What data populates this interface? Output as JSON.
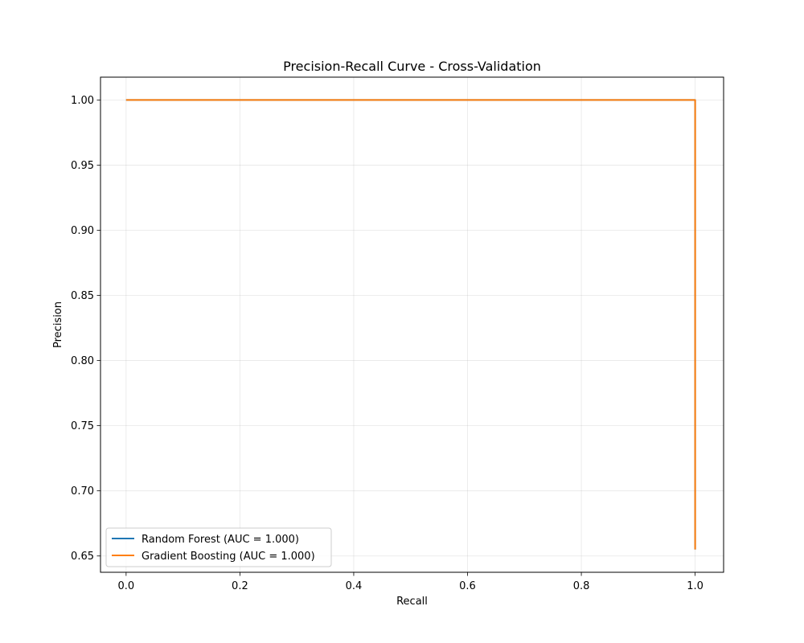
{
  "chart_data": {
    "type": "line",
    "title": "Precision-Recall Curve - Cross-Validation",
    "xlabel": "Recall",
    "ylabel": "Precision",
    "xlim": [
      -0.045,
      1.05
    ],
    "ylim": [
      0.6375,
      1.0175
    ],
    "xticks": [
      0.0,
      0.2,
      0.4,
      0.6,
      0.8,
      1.0
    ],
    "xtick_labels": [
      "0.0",
      "0.2",
      "0.4",
      "0.6",
      "0.8",
      "1.0"
    ],
    "yticks": [
      0.65,
      0.7,
      0.75,
      0.8,
      0.85,
      0.9,
      0.95,
      1.0
    ],
    "ytick_labels": [
      "0.65",
      "0.70",
      "0.75",
      "0.80",
      "0.85",
      "0.90",
      "0.95",
      "1.00"
    ],
    "grid": true,
    "legend_position": "lower-left",
    "series": [
      {
        "name": "Random Forest (AUC = 1.000)",
        "color": "#1f77b4",
        "x": [
          0.0,
          1.0,
          1.0
        ],
        "y": [
          1.0,
          1.0,
          0.655
        ]
      },
      {
        "name": "Gradient Boosting (AUC = 1.000)",
        "color": "#ff7f0e",
        "x": [
          0.0,
          1.0,
          1.0
        ],
        "y": [
          1.0,
          1.0,
          0.655
        ]
      }
    ]
  }
}
